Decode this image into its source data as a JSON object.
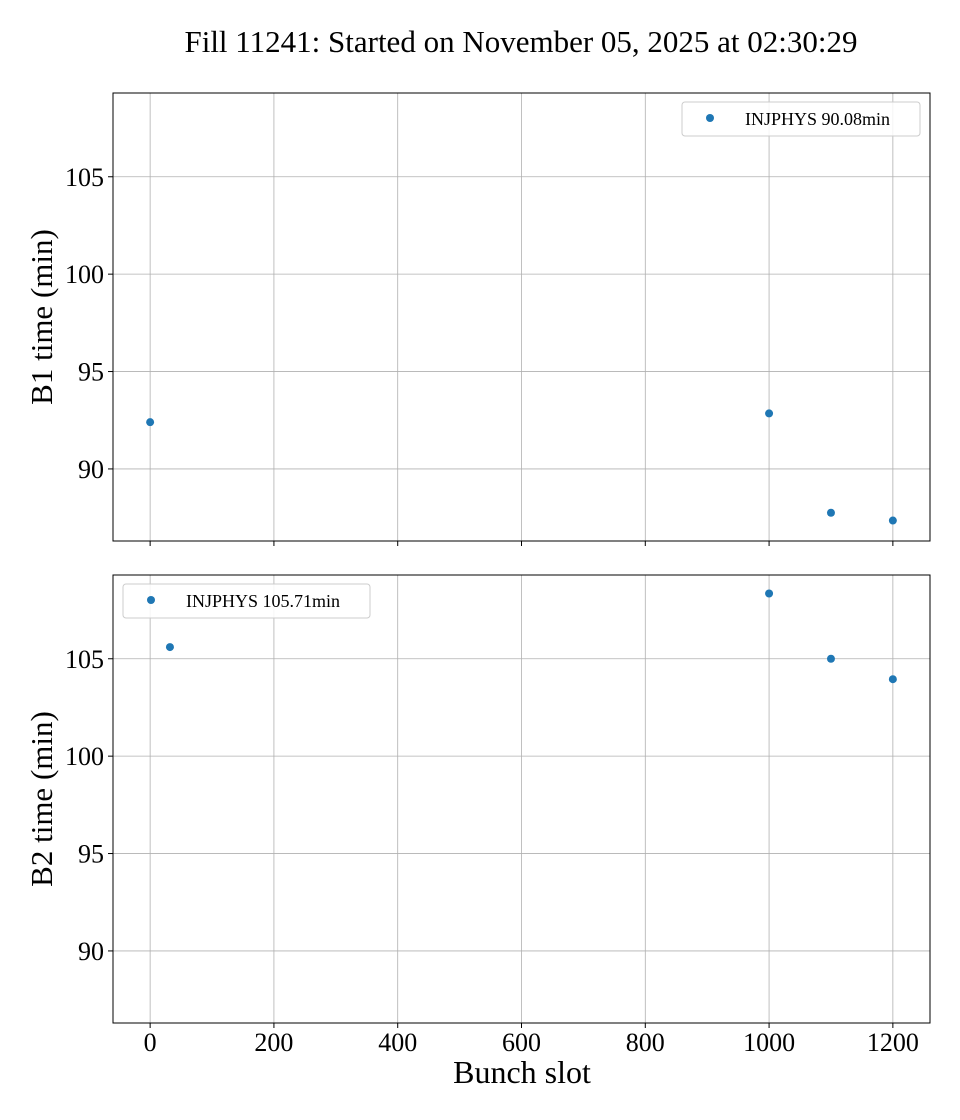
{
  "figure_title": "Fill 11241: Started on November 05, 2025 at 02:30:29",
  "colors": {
    "marker": "#1f77b4",
    "grid": "#b0b0b0",
    "axes": "#000000",
    "legend_border": "#cccccc"
  },
  "chart_data": [
    {
      "type": "scatter",
      "title": "",
      "xlabel": "",
      "ylabel": "B1 time (min)",
      "xlim": [
        -60,
        1260
      ],
      "ylim": [
        86.3,
        109.3
      ],
      "xticks": [
        0,
        200,
        400,
        600,
        800,
        1000,
        1200
      ],
      "xtick_labels": [
        "",
        "",
        "",
        "",
        "",
        "",
        ""
      ],
      "yticks": [
        90,
        95,
        100,
        105
      ],
      "ytick_labels": [
        "90",
        "95",
        "100",
        "105"
      ],
      "grid": true,
      "legend_position": "upper right",
      "series": [
        {
          "name": "INJPHYS 90.08min",
          "color": "#1f77b4",
          "x": [
            0,
            1000,
            1100,
            1200
          ],
          "y": [
            92.4,
            92.85,
            87.75,
            87.35
          ]
        }
      ]
    },
    {
      "type": "scatter",
      "title": "",
      "xlabel": "Bunch slot",
      "ylabel": "B2 time (min)",
      "xlim": [
        -60,
        1260
      ],
      "ylim": [
        86.3,
        109.3
      ],
      "xticks": [
        0,
        200,
        400,
        600,
        800,
        1000,
        1200
      ],
      "xtick_labels": [
        "0",
        "200",
        "400",
        "600",
        "800",
        "1000",
        "1200"
      ],
      "yticks": [
        90,
        95,
        100,
        105
      ],
      "ytick_labels": [
        "90",
        "95",
        "100",
        "105"
      ],
      "grid": true,
      "legend_position": "upper left",
      "series": [
        {
          "name": "INJPHYS 105.71min",
          "color": "#1f77b4",
          "x": [
            32,
            1000,
            1100,
            1200
          ],
          "y": [
            105.6,
            108.35,
            105.0,
            103.95
          ]
        }
      ]
    }
  ]
}
